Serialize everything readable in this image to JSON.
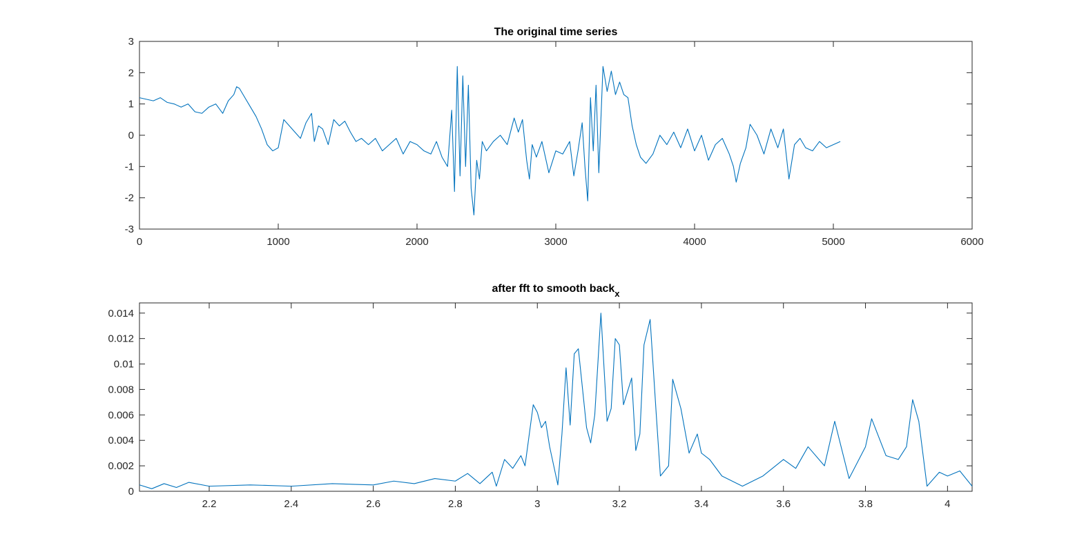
{
  "colors": {
    "series": "#0072BD",
    "axis": "#262626",
    "background": "#ffffff"
  },
  "chart_data": [
    {
      "type": "line",
      "title": "The original time series",
      "xlabel": "",
      "ylabel": "",
      "xlim": [
        0,
        6000
      ],
      "ylim": [
        -3,
        3
      ],
      "xticks": [
        0,
        1000,
        2000,
        3000,
        4000,
        5000,
        6000
      ],
      "xtick_labels": [
        "0",
        "1000",
        "2000",
        "3000",
        "4000",
        "5000",
        "6000"
      ],
      "yticks": [
        -3,
        -2,
        -1,
        0,
        1,
        2,
        3
      ],
      "ytick_labels": [
        "-3",
        "-2",
        "-1",
        "0",
        "1",
        "2",
        "3"
      ],
      "grid": false,
      "series": [
        {
          "x": [
            0,
            50,
            100,
            150,
            200,
            250,
            300,
            350,
            400,
            450,
            500,
            550,
            600,
            640,
            680,
            700,
            720,
            760,
            800,
            840,
            880,
            920,
            960,
            1000,
            1040,
            1080,
            1120,
            1160,
            1200,
            1240,
            1260,
            1290,
            1320,
            1360,
            1400,
            1440,
            1480,
            1520,
            1560,
            1600,
            1650,
            1700,
            1750,
            1800,
            1850,
            1900,
            1950,
            2000,
            2050,
            2100,
            2140,
            2180,
            2220,
            2250,
            2270,
            2290,
            2310,
            2330,
            2350,
            2370,
            2390,
            2410,
            2430,
            2450,
            2470,
            2500,
            2550,
            2600,
            2650,
            2700,
            2730,
            2760,
            2790,
            2810,
            2830,
            2860,
            2900,
            2950,
            3000,
            3050,
            3100,
            3130,
            3160,
            3190,
            3210,
            3230,
            3250,
            3270,
            3290,
            3310,
            3340,
            3370,
            3400,
            3430,
            3460,
            3490,
            3520,
            3550,
            3580,
            3610,
            3650,
            3700,
            3750,
            3800,
            3850,
            3900,
            3950,
            4000,
            4050,
            4100,
            4150,
            4200,
            4250,
            4280,
            4300,
            4330,
            4370,
            4400,
            4450,
            4500,
            4550,
            4600,
            4640,
            4680,
            4720,
            4760,
            4800,
            4850,
            4900,
            4950,
            5000,
            5050
          ],
          "values": [
            1.2,
            1.15,
            1.1,
            1.2,
            1.05,
            1.0,
            0.9,
            1.0,
            0.75,
            0.7,
            0.9,
            1.0,
            0.7,
            1.1,
            1.3,
            1.55,
            1.5,
            1.2,
            0.9,
            0.6,
            0.2,
            -0.3,
            -0.5,
            -0.4,
            0.5,
            0.3,
            0.1,
            -0.1,
            0.4,
            0.7,
            -0.2,
            0.3,
            0.2,
            -0.3,
            0.5,
            0.3,
            0.45,
            0.1,
            -0.2,
            -0.1,
            -0.3,
            -0.1,
            -0.5,
            -0.3,
            -0.1,
            -0.6,
            -0.2,
            -0.3,
            -0.5,
            -0.6,
            -0.2,
            -0.7,
            -1.0,
            0.8,
            -1.8,
            2.2,
            -1.3,
            1.9,
            -1.0,
            1.6,
            -1.7,
            -2.55,
            -0.8,
            -1.4,
            -0.2,
            -0.5,
            -0.2,
            0.0,
            -0.3,
            0.55,
            0.1,
            0.5,
            -0.8,
            -1.4,
            -0.3,
            -0.7,
            -0.2,
            -1.2,
            -0.5,
            -0.6,
            -0.2,
            -1.3,
            -0.5,
            0.4,
            -1.0,
            -2.1,
            1.2,
            -0.5,
            1.6,
            -1.2,
            2.2,
            1.4,
            2.05,
            1.3,
            1.7,
            1.3,
            1.2,
            0.3,
            -0.3,
            -0.7,
            -0.9,
            -0.6,
            0.0,
            -0.3,
            0.1,
            -0.4,
            0.2,
            -0.5,
            0.0,
            -0.8,
            -0.3,
            -0.1,
            -0.6,
            -1.0,
            -1.5,
            -0.9,
            -0.4,
            0.35,
            0.0,
            -0.6,
            0.2,
            -0.4,
            0.2,
            -1.4,
            -0.3,
            -0.1,
            -0.4,
            -0.5,
            -0.2,
            -0.4,
            -0.3,
            -0.2
          ]
        }
      ]
    },
    {
      "type": "line",
      "title": "after fft to smooth back",
      "title_subscript": "x",
      "xlabel": "",
      "ylabel": "",
      "xlim": [
        2.03,
        4.06
      ],
      "ylim": [
        0,
        0.0148
      ],
      "xticks": [
        2.2,
        2.4,
        2.6,
        2.8,
        3.0,
        3.2,
        3.4,
        3.6,
        3.8,
        4.0
      ],
      "xtick_labels": [
        "2.2",
        "2.4",
        "2.6",
        "2.8",
        "3",
        "3.2",
        "3.4",
        "3.6",
        "3.8",
        "4"
      ],
      "yticks": [
        0,
        0.002,
        0.004,
        0.006,
        0.008,
        0.01,
        0.012,
        0.014
      ],
      "ytick_labels": [
        "0",
        "0.002",
        "0.004",
        "0.006",
        "0.008",
        "0.01",
        "0.012",
        "0.014"
      ],
      "grid": false,
      "series": [
        {
          "x": [
            2.03,
            2.06,
            2.09,
            2.12,
            2.15,
            2.2,
            2.3,
            2.4,
            2.5,
            2.6,
            2.65,
            2.7,
            2.75,
            2.8,
            2.83,
            2.86,
            2.89,
            2.9,
            2.92,
            2.94,
            2.96,
            2.97,
            2.99,
            3.0,
            3.01,
            3.02,
            3.03,
            3.05,
            3.06,
            3.07,
            3.08,
            3.09,
            3.1,
            3.12,
            3.13,
            3.14,
            3.155,
            3.17,
            3.18,
            3.19,
            3.2,
            3.21,
            3.23,
            3.24,
            3.25,
            3.26,
            3.275,
            3.29,
            3.3,
            3.32,
            3.33,
            3.35,
            3.37,
            3.39,
            3.4,
            3.42,
            3.45,
            3.5,
            3.55,
            3.6,
            3.63,
            3.66,
            3.7,
            3.725,
            3.76,
            3.8,
            3.815,
            3.85,
            3.88,
            3.9,
            3.915,
            3.93,
            3.95,
            3.98,
            4.0,
            4.03,
            4.06
          ],
          "values": [
            0.0005,
            0.0002,
            0.0006,
            0.0003,
            0.0007,
            0.0004,
            0.0005,
            0.0004,
            0.0006,
            0.0005,
            0.0008,
            0.0006,
            0.001,
            0.0008,
            0.0014,
            0.0006,
            0.0015,
            0.0004,
            0.0025,
            0.0018,
            0.0028,
            0.002,
            0.0068,
            0.0062,
            0.005,
            0.0055,
            0.0035,
            0.0005,
            0.0045,
            0.0097,
            0.0052,
            0.0108,
            0.0112,
            0.005,
            0.0038,
            0.006,
            0.014,
            0.0055,
            0.0065,
            0.012,
            0.0115,
            0.0068,
            0.0089,
            0.0032,
            0.0045,
            0.0115,
            0.0135,
            0.006,
            0.0012,
            0.002,
            0.0088,
            0.0065,
            0.003,
            0.0045,
            0.003,
            0.0025,
            0.0012,
            0.0004,
            0.0012,
            0.0025,
            0.0018,
            0.0035,
            0.002,
            0.0055,
            0.001,
            0.0035,
            0.0057,
            0.0028,
            0.0025,
            0.0035,
            0.0072,
            0.0055,
            0.0004,
            0.0015,
            0.0012,
            0.0016,
            0.0004
          ]
        }
      ]
    }
  ]
}
